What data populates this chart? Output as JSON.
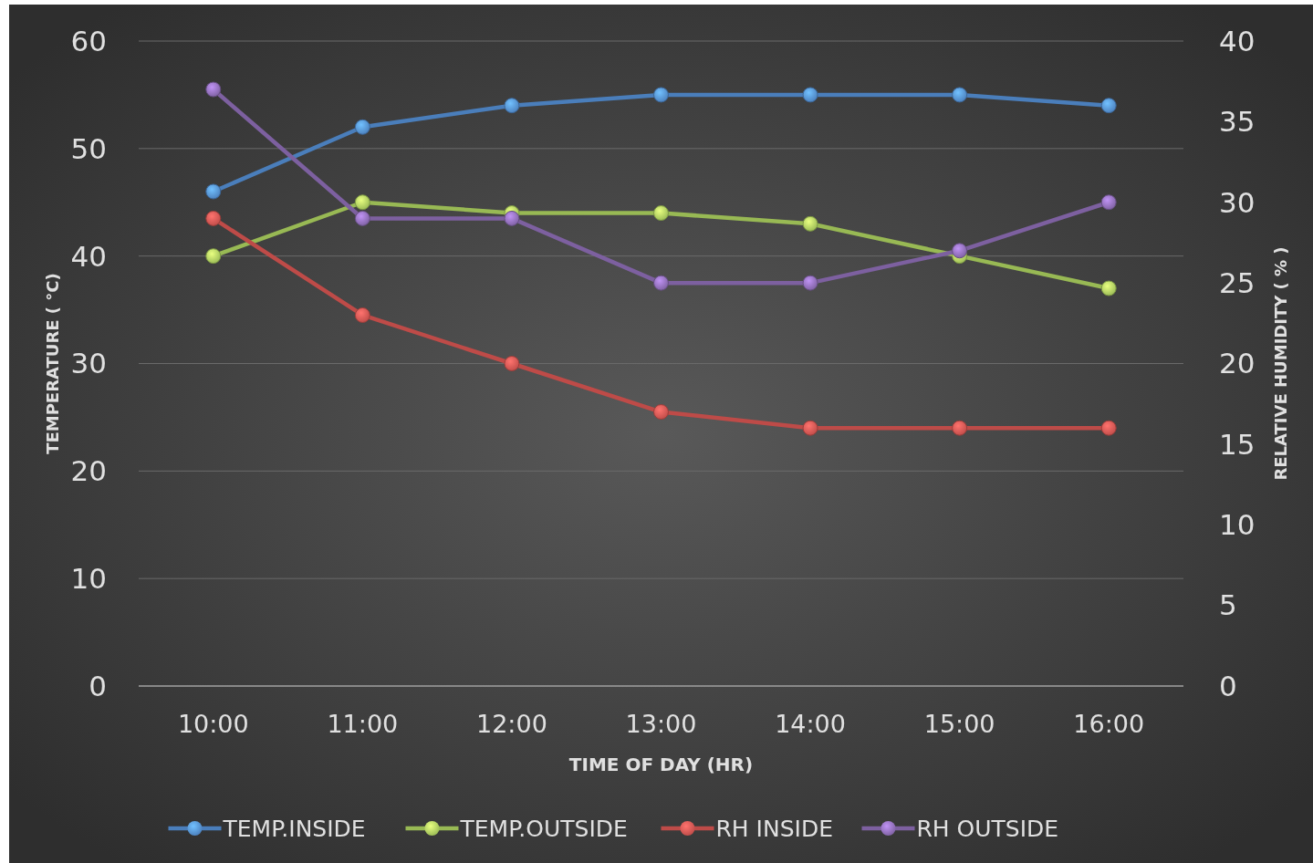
{
  "chart_data": {
    "type": "line",
    "xlabel": "TIME OF DAY (HR)",
    "ylabel": "TEMPERATURE ( °C)",
    "y2label": "RELATIVE HUMIDITY ( % )",
    "categories": [
      "10:00",
      "11:00",
      "12:00",
      "13:00",
      "14:00",
      "15:00",
      "16:00"
    ],
    "series": [
      {
        "name": "TEMP.INSIDE",
        "color": "#4a7ebb",
        "values": [
          46,
          52,
          54,
          55,
          55,
          55,
          54
        ]
      },
      {
        "name": "TEMP.OUTSIDE",
        "color": "#98b954",
        "values": [
          40,
          45,
          44,
          44,
          43,
          40,
          37
        ]
      },
      {
        "name": "RH INSIDE",
        "color": "#be4b48",
        "axis": "y2",
        "values": [
          29,
          23,
          20,
          17,
          16,
          16,
          16
        ]
      },
      {
        "name": "RH OUTSIDE",
        "color": "#7d60a0",
        "axis": "y2",
        "values": [
          37,
          29,
          29,
          25,
          25,
          27,
          30
        ]
      }
    ],
    "ylim": [
      0,
      60
    ],
    "yticks": [
      0,
      10,
      20,
      30,
      40,
      50,
      60
    ],
    "y2lim": [
      0,
      40
    ],
    "y2ticks": [
      0,
      5,
      10,
      15,
      20,
      25,
      30,
      35,
      40
    ],
    "grid": "y",
    "legend": "bottom",
    "marker": "circle",
    "line_style": "solid"
  }
}
